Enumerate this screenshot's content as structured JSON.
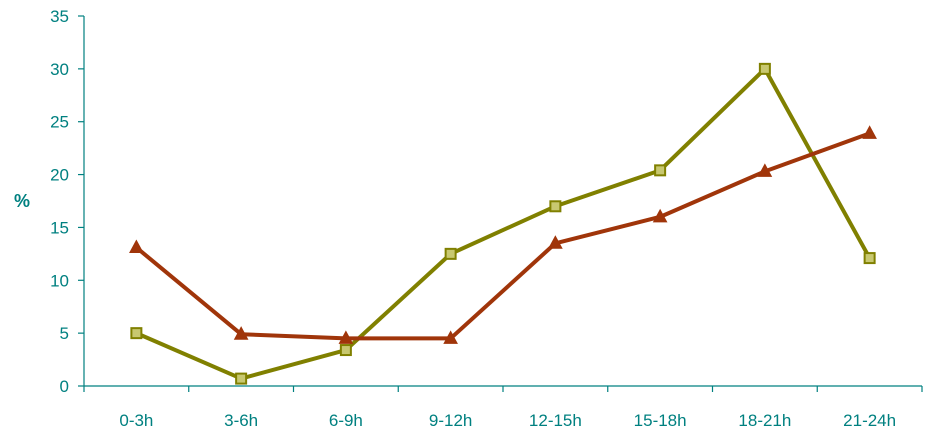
{
  "chart_data": {
    "type": "line",
    "title": "",
    "xlabel": "",
    "ylabel": "%",
    "ylim": [
      0,
      35
    ],
    "yticks": [
      0,
      5,
      10,
      15,
      20,
      25,
      30,
      35
    ],
    "categories": [
      "0-3h",
      "3-6h",
      "6-9h",
      "9-12h",
      "12-15h",
      "15-18h",
      "18-21h",
      "21-24h"
    ],
    "grid": false,
    "legend": "none",
    "axis_color": "#008080",
    "series": [
      {
        "color": "#808000",
        "marker": "square",
        "values": [
          5.0,
          0.7,
          3.4,
          12.5,
          17.0,
          20.4,
          30.0,
          12.1
        ]
      },
      {
        "color": "#a0350a",
        "marker": "triangle",
        "values": [
          13.1,
          4.9,
          4.5,
          4.5,
          13.5,
          16.0,
          20.3,
          23.9
        ]
      }
    ]
  }
}
